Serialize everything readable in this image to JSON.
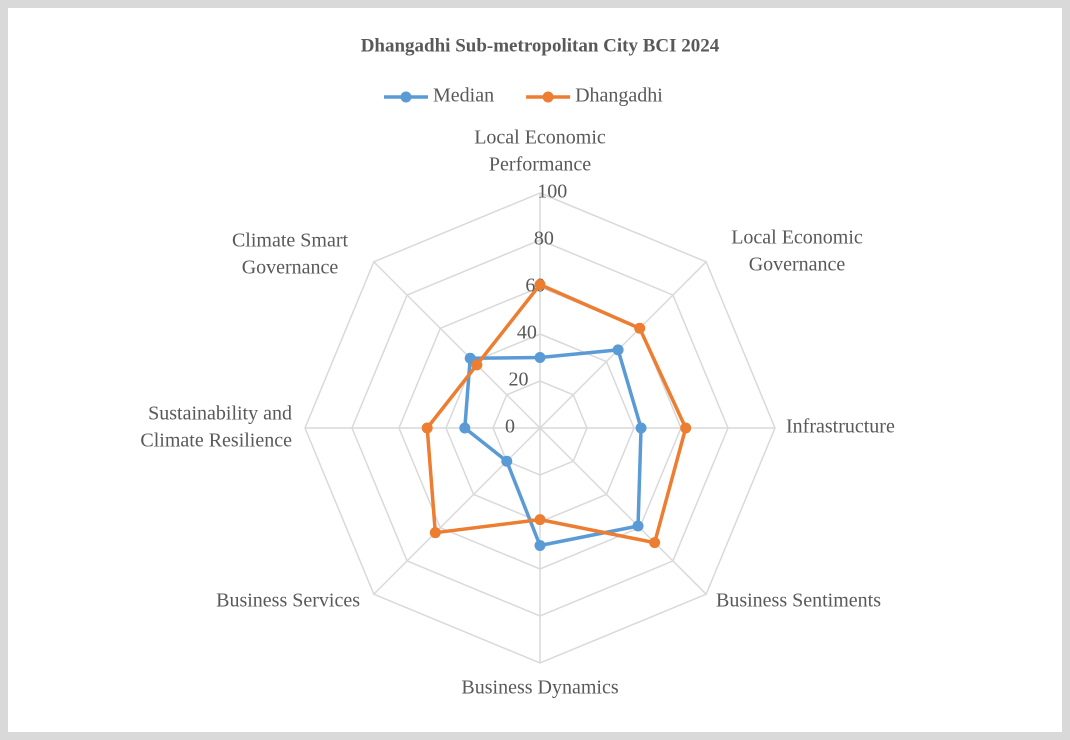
{
  "chart_data": {
    "type": "radar",
    "title": "Dhangadhi Sub-metropolitan City BCI 2024",
    "categories": [
      "Local Economic\nPerformance",
      "Local Economic\nGovernance",
      "Infrastructure",
      "Business Sentiments",
      "Business Dynamics",
      "Business Services",
      "Sustainability and\nClimate Resilience",
      "Climate Smart\nGovernance"
    ],
    "series": [
      {
        "name": "Median",
        "color": "#5b9bd5",
        "values": [
          30,
          47,
          43,
          59,
          50,
          20,
          32,
          42
        ]
      },
      {
        "name": "Dhangadhi",
        "color": "#ed7d31",
        "values": [
          61,
          60,
          62,
          69,
          39,
          63,
          48,
          38
        ]
      }
    ],
    "ylim": [
      0,
      100
    ],
    "yticks": [
      0,
      20,
      40,
      60,
      80,
      100
    ],
    "grid": true,
    "legend": "top"
  }
}
